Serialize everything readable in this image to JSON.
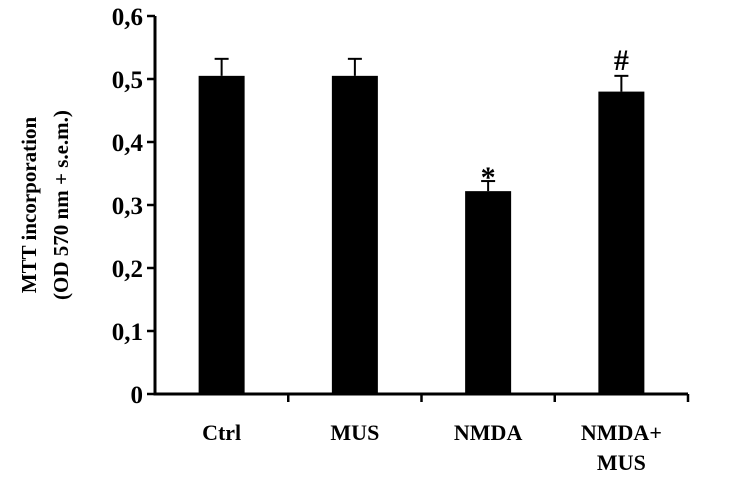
{
  "chart_data": {
    "type": "bar",
    "categories": [
      [
        "Ctrl"
      ],
      [
        "MUS"
      ],
      [
        "NMDA"
      ],
      [
        "NMDA+",
        "MUS"
      ]
    ],
    "values": [
      0.505,
      0.505,
      0.322,
      0.48
    ],
    "errors": [
      0.027,
      0.027,
      0.016,
      0.025
    ],
    "annotations": [
      "",
      "",
      "*",
      "#"
    ],
    "ylabel_lines": [
      "MTT incorporation",
      "(OD 570 nm + s.e.m.)"
    ],
    "ylim": [
      0,
      0.6
    ],
    "yticks": [
      "0",
      "0,1",
      "0,2",
      "0,3",
      "0,4",
      "0,5",
      "0,6"
    ],
    "grid": false,
    "bar_color": "#000000"
  }
}
